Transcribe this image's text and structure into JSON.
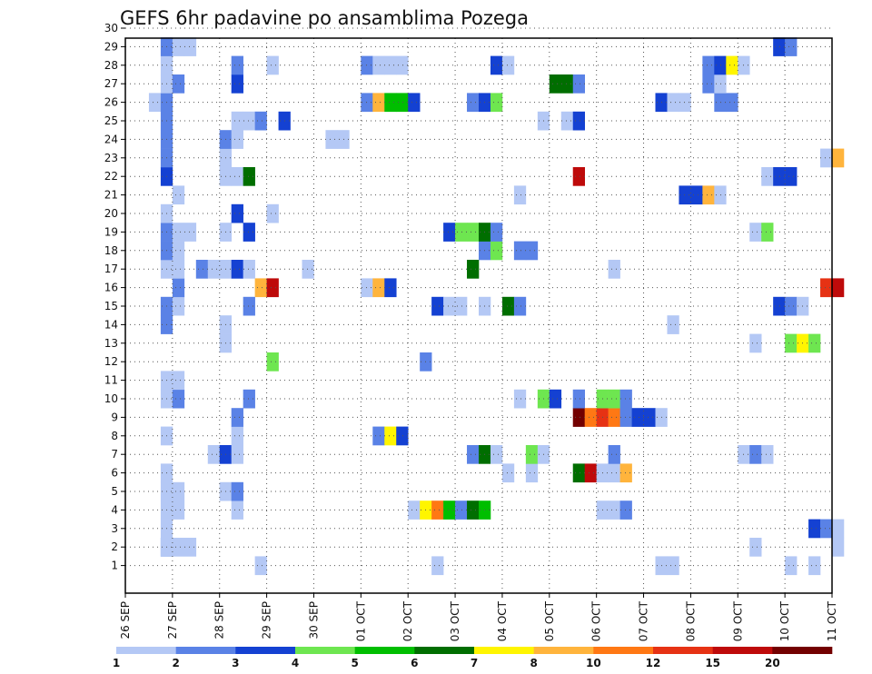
{
  "chart_data": {
    "type": "heatmap",
    "title": "GEFS 6hr padavine po ansamblima Pozega",
    "x_tick_labels": [
      "26 SEP",
      "27 SEP",
      "28 SEP",
      "29 SEP",
      "30 SEP",
      "01 OCT",
      "02 OCT",
      "03 OCT",
      "04 OCT",
      "05 OCT",
      "06 OCT",
      "07 OCT",
      "08 OCT",
      "09 OCT",
      "10 OCT",
      "11 OCT"
    ],
    "y_tick_labels": [
      "1",
      "2",
      "3",
      "4",
      "5",
      "6",
      "7",
      "8",
      "9",
      "10",
      "11",
      "12",
      "13",
      "14",
      "15",
      "16",
      "17",
      "18",
      "19",
      "20",
      "21",
      "22",
      "23",
      "24",
      "25",
      "26",
      "27",
      "28",
      "29",
      "30"
    ],
    "grid": true,
    "legend_position": "bottom",
    "colorbar": {
      "labels": [
        "1",
        "2",
        "3",
        "4",
        "5",
        "6",
        "7",
        "8",
        "10",
        "12",
        "15",
        "20"
      ],
      "colors": [
        "#b4c8f5",
        "#5a82e6",
        "#1441d2",
        "#6ee650",
        "#00be00",
        "#006e00",
        "#fff500",
        "#ffb43c",
        "#ff7814",
        "#e63214",
        "#be0a0a",
        "#730000"
      ]
    },
    "cells": [
      [
        1,
        11,
        1
      ],
      [
        1,
        26,
        1
      ],
      [
        1,
        45,
        1
      ],
      [
        1,
        46,
        1
      ],
      [
        1,
        56,
        1
      ],
      [
        1,
        58,
        1
      ],
      [
        1,
        84,
        2
      ],
      [
        2,
        3,
        2
      ],
      [
        2,
        3,
        1
      ],
      [
        2,
        4,
        1
      ],
      [
        2,
        5,
        1
      ],
      [
        2,
        53,
        1
      ],
      [
        2,
        60,
        1
      ],
      [
        3,
        3,
        1
      ],
      [
        3,
        58,
        3
      ],
      [
        3,
        59,
        2
      ],
      [
        3,
        60,
        1
      ],
      [
        4,
        3,
        1
      ],
      [
        4,
        4,
        1
      ],
      [
        4,
        9,
        1
      ],
      [
        4,
        24,
        1
      ],
      [
        4,
        25,
        7
      ],
      [
        4,
        26,
        9
      ],
      [
        4,
        27,
        5
      ],
      [
        4,
        28,
        2
      ],
      [
        4,
        29,
        6
      ],
      [
        4,
        30,
        5
      ],
      [
        4,
        40,
        1
      ],
      [
        4,
        41,
        1
      ],
      [
        4,
        42,
        2
      ],
      [
        5,
        3,
        1
      ],
      [
        5,
        4,
        1
      ],
      [
        5,
        8,
        1
      ],
      [
        5,
        9,
        2
      ],
      [
        6,
        3,
        1
      ],
      [
        6,
        32,
        1
      ],
      [
        6,
        34,
        1
      ],
      [
        6,
        38,
        6
      ],
      [
        6,
        39,
        11
      ],
      [
        6,
        40,
        1
      ],
      [
        6,
        41,
        1
      ],
      [
        6,
        42,
        8
      ],
      [
        7,
        7,
        1
      ],
      [
        7,
        8,
        3
      ],
      [
        7,
        9,
        1
      ],
      [
        7,
        29,
        2
      ],
      [
        7,
        30,
        6
      ],
      [
        7,
        31,
        1
      ],
      [
        7,
        34,
        4
      ],
      [
        7,
        35,
        1
      ],
      [
        7,
        41,
        2
      ],
      [
        7,
        52,
        1
      ],
      [
        7,
        53,
        2
      ],
      [
        7,
        54,
        1
      ],
      [
        8,
        3,
        1
      ],
      [
        8,
        9,
        1
      ],
      [
        8,
        21,
        2
      ],
      [
        8,
        22,
        7
      ],
      [
        8,
        23,
        3
      ],
      [
        9,
        9,
        2
      ],
      [
        9,
        38,
        12
      ],
      [
        9,
        39,
        9
      ],
      [
        9,
        40,
        10
      ],
      [
        9,
        41,
        9
      ],
      [
        9,
        42,
        2
      ],
      [
        9,
        43,
        3
      ],
      [
        9,
        44,
        3
      ],
      [
        9,
        45,
        1
      ],
      [
        10,
        3,
        1
      ],
      [
        10,
        4,
        2
      ],
      [
        10,
        10,
        2
      ],
      [
        10,
        33,
        1
      ],
      [
        10,
        35,
        4
      ],
      [
        10,
        36,
        3
      ],
      [
        10,
        38,
        2
      ],
      [
        10,
        40,
        4
      ],
      [
        10,
        41,
        4
      ],
      [
        10,
        42,
        2
      ],
      [
        11,
        3,
        1
      ],
      [
        11,
        4,
        1
      ],
      [
        12,
        12,
        4
      ],
      [
        12,
        25,
        2
      ],
      [
        13,
        8,
        1
      ],
      [
        13,
        53,
        1
      ],
      [
        13,
        56,
        4
      ],
      [
        13,
        57,
        7
      ],
      [
        13,
        58,
        4
      ],
      [
        14,
        3,
        2
      ],
      [
        14,
        8,
        1
      ],
      [
        14,
        46,
        1
      ],
      [
        15,
        3,
        2
      ],
      [
        15,
        4,
        1
      ],
      [
        15,
        10,
        2
      ],
      [
        15,
        26,
        3
      ],
      [
        15,
        27,
        1
      ],
      [
        15,
        28,
        1
      ],
      [
        15,
        30,
        1
      ],
      [
        15,
        32,
        6
      ],
      [
        15,
        33,
        2
      ],
      [
        15,
        55,
        3
      ],
      [
        15,
        56,
        2
      ],
      [
        15,
        57,
        1
      ],
      [
        16,
        4,
        2
      ],
      [
        16,
        11,
        8
      ],
      [
        16,
        12,
        11
      ],
      [
        16,
        20,
        1
      ],
      [
        16,
        21,
        8
      ],
      [
        16,
        22,
        3
      ],
      [
        16,
        59,
        10
      ],
      [
        16,
        60,
        11
      ],
      [
        17,
        3,
        1
      ],
      [
        17,
        4,
        1
      ],
      [
        17,
        6,
        2
      ],
      [
        17,
        7,
        1
      ],
      [
        17,
        8,
        1
      ],
      [
        17,
        9,
        3
      ],
      [
        17,
        10,
        1
      ],
      [
        17,
        15,
        1
      ],
      [
        17,
        29,
        6
      ],
      [
        17,
        41,
        1
      ],
      [
        18,
        3,
        2
      ],
      [
        18,
        4,
        1
      ],
      [
        18,
        30,
        2
      ],
      [
        18,
        31,
        4
      ],
      [
        18,
        33,
        2
      ],
      [
        18,
        34,
        2
      ],
      [
        19,
        3,
        2
      ],
      [
        19,
        4,
        1
      ],
      [
        19,
        5,
        1
      ],
      [
        19,
        8,
        1
      ],
      [
        19,
        10,
        3
      ],
      [
        19,
        27,
        3
      ],
      [
        19,
        28,
        4
      ],
      [
        19,
        29,
        4
      ],
      [
        19,
        30,
        6
      ],
      [
        19,
        31,
        2
      ],
      [
        19,
        53,
        1
      ],
      [
        19,
        54,
        4
      ],
      [
        20,
        3,
        1
      ],
      [
        20,
        9,
        3
      ],
      [
        20,
        12,
        1
      ],
      [
        21,
        4,
        1
      ],
      [
        21,
        33,
        1
      ],
      [
        21,
        47,
        3
      ],
      [
        21,
        48,
        3
      ],
      [
        21,
        49,
        8
      ],
      [
        21,
        50,
        1
      ],
      [
        22,
        3,
        3
      ],
      [
        22,
        8,
        1
      ],
      [
        22,
        9,
        1
      ],
      [
        22,
        10,
        6
      ],
      [
        22,
        38,
        11
      ],
      [
        22,
        54,
        1
      ],
      [
        22,
        55,
        3
      ],
      [
        22,
        56,
        3
      ],
      [
        23,
        3,
        2
      ],
      [
        23,
        8,
        1
      ],
      [
        23,
        59,
        1
      ],
      [
        23,
        60,
        8
      ],
      [
        24,
        3,
        2
      ],
      [
        24,
        8,
        2
      ],
      [
        24,
        9,
        1
      ],
      [
        24,
        17,
        1
      ],
      [
        24,
        18,
        1
      ],
      [
        25,
        3,
        2
      ],
      [
        25,
        9,
        1
      ],
      [
        25,
        10,
        1
      ],
      [
        25,
        11,
        2
      ],
      [
        25,
        13,
        3
      ],
      [
        25,
        35,
        1
      ],
      [
        25,
        37,
        1
      ],
      [
        25,
        38,
        3
      ],
      [
        26,
        2,
        1
      ],
      [
        26,
        3,
        2
      ],
      [
        26,
        20,
        2
      ],
      [
        26,
        21,
        8
      ],
      [
        26,
        22,
        5
      ],
      [
        26,
        23,
        5
      ],
      [
        26,
        24,
        3
      ],
      [
        26,
        29,
        2
      ],
      [
        26,
        30,
        3
      ],
      [
        26,
        31,
        4
      ],
      [
        26,
        45,
        3
      ],
      [
        26,
        46,
        1
      ],
      [
        26,
        47,
        1
      ],
      [
        26,
        50,
        2
      ],
      [
        26,
        51,
        2
      ],
      [
        27,
        3,
        1
      ],
      [
        27,
        4,
        2
      ],
      [
        27,
        9,
        3
      ],
      [
        27,
        36,
        6
      ],
      [
        27,
        37,
        6
      ],
      [
        27,
        38,
        2
      ],
      [
        27,
        49,
        2
      ],
      [
        27,
        50,
        1
      ],
      [
        28,
        3,
        1
      ],
      [
        28,
        9,
        2
      ],
      [
        28,
        12,
        1
      ],
      [
        28,
        20,
        2
      ],
      [
        28,
        21,
        1
      ],
      [
        28,
        22,
        1
      ],
      [
        28,
        23,
        1
      ],
      [
        28,
        31,
        3
      ],
      [
        28,
        32,
        1
      ],
      [
        28,
        49,
        2
      ],
      [
        28,
        50,
        3
      ],
      [
        28,
        51,
        7
      ],
      [
        28,
        52,
        1
      ],
      [
        29,
        3,
        2
      ],
      [
        29,
        4,
        1
      ],
      [
        29,
        5,
        1
      ],
      [
        29,
        55,
        3
      ],
      [
        29,
        56,
        2
      ]
    ]
  }
}
